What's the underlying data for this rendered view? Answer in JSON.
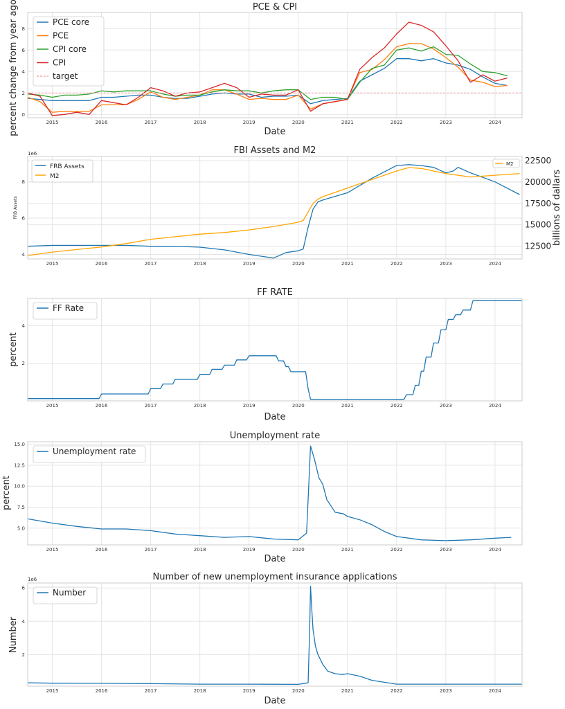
{
  "colors": {
    "blue": "#1f77b4",
    "orange": "#ff7f0e",
    "green": "#2ca02c",
    "red": "#d62728",
    "target": "#f4a6a6",
    "m2": "#ffa500",
    "grid": "#e5e5e5",
    "frame": "#cccccc"
  },
  "chart_data": [
    {
      "type": "line",
      "title": "PCE & CPI",
      "xlabel": "Date",
      "ylabel": "percent change from year ago",
      "xlim": [
        2014.5,
        2024.55
      ],
      "ylim": [
        -0.3,
        9.5
      ],
      "xticks": [
        "2015",
        "2016",
        "2017",
        "2018",
        "2019",
        "2020",
        "2021",
        "2022",
        "2023",
        "2024"
      ],
      "yticks": [
        "0",
        "2",
        "4",
        "6",
        "8"
      ],
      "legend": "upper left",
      "grid": true,
      "series": [
        {
          "name": "PCE core",
          "color": "blue",
          "x": [
            2014.5,
            2014.75,
            2015.0,
            2015.25,
            2015.5,
            2015.75,
            2016.0,
            2016.25,
            2016.5,
            2016.75,
            2017.0,
            2017.25,
            2017.5,
            2017.75,
            2018.0,
            2018.25,
            2018.5,
            2018.75,
            2019.0,
            2019.25,
            2019.5,
            2019.75,
            2020.0,
            2020.25,
            2020.5,
            2020.75,
            2021.0,
            2021.25,
            2021.5,
            2021.75,
            2022.0,
            2022.25,
            2022.5,
            2022.75,
            2023.0,
            2023.25,
            2023.5,
            2023.75,
            2024.0,
            2024.25
          ],
          "y": [
            1.5,
            1.4,
            1.3,
            1.3,
            1.3,
            1.3,
            1.6,
            1.6,
            1.7,
            1.8,
            1.8,
            1.6,
            1.5,
            1.5,
            1.7,
            1.9,
            2.0,
            1.9,
            1.9,
            1.6,
            1.7,
            1.7,
            1.8,
            1.0,
            1.3,
            1.4,
            1.5,
            3.1,
            3.7,
            4.3,
            5.2,
            5.2,
            5.0,
            5.2,
            4.8,
            4.6,
            4.2,
            3.5,
            2.9,
            2.7
          ]
        },
        {
          "name": "PCE",
          "color": "orange",
          "x": [
            2014.5,
            2014.75,
            2015.0,
            2015.25,
            2015.5,
            2015.75,
            2016.0,
            2016.25,
            2016.5,
            2016.75,
            2017.0,
            2017.25,
            2017.5,
            2017.75,
            2018.0,
            2018.25,
            2018.5,
            2018.75,
            2019.0,
            2019.25,
            2019.5,
            2019.75,
            2020.0,
            2020.25,
            2020.5,
            2020.75,
            2021.0,
            2021.25,
            2021.5,
            2021.75,
            2022.0,
            2022.25,
            2022.5,
            2022.75,
            2023.0,
            2023.25,
            2023.5,
            2023.75,
            2024.0,
            2024.25
          ],
          "y": [
            1.6,
            1.2,
            0.2,
            0.3,
            0.3,
            0.3,
            0.9,
            0.9,
            0.9,
            1.4,
            2.1,
            1.6,
            1.4,
            1.6,
            1.8,
            2.3,
            2.3,
            1.9,
            1.4,
            1.5,
            1.4,
            1.4,
            1.8,
            0.5,
            1.0,
            1.2,
            1.4,
            3.9,
            4.2,
            5.1,
            6.3,
            6.6,
            6.6,
            6.1,
            5.3,
            4.4,
            3.2,
            3.0,
            2.6,
            2.7
          ]
        },
        {
          "name": "CPI core",
          "color": "green",
          "x": [
            2014.5,
            2014.75,
            2015.0,
            2015.25,
            2015.5,
            2015.75,
            2016.0,
            2016.25,
            2016.5,
            2016.75,
            2017.0,
            2017.25,
            2017.5,
            2017.75,
            2018.0,
            2018.25,
            2018.5,
            2018.75,
            2019.0,
            2019.25,
            2019.5,
            2019.75,
            2020.0,
            2020.25,
            2020.5,
            2020.75,
            2021.0,
            2021.25,
            2021.5,
            2021.75,
            2022.0,
            2022.25,
            2022.5,
            2022.75,
            2023.0,
            2023.25,
            2023.5,
            2023.75,
            2024.0,
            2024.25
          ],
          "y": [
            1.9,
            1.8,
            1.6,
            1.8,
            1.8,
            1.9,
            2.2,
            2.1,
            2.2,
            2.2,
            2.2,
            1.9,
            1.7,
            1.8,
            1.8,
            2.1,
            2.3,
            2.2,
            2.2,
            2.0,
            2.2,
            2.3,
            2.3,
            1.4,
            1.6,
            1.6,
            1.4,
            3.0,
            4.3,
            4.6,
            6.0,
            6.2,
            5.9,
            6.3,
            5.6,
            5.5,
            4.7,
            4.0,
            3.9,
            3.6
          ]
        },
        {
          "name": "CPI",
          "color": "red",
          "x": [
            2014.5,
            2014.75,
            2015.0,
            2015.25,
            2015.5,
            2015.75,
            2016.0,
            2016.25,
            2016.5,
            2016.75,
            2017.0,
            2017.25,
            2017.5,
            2017.75,
            2018.0,
            2018.25,
            2018.5,
            2018.75,
            2019.0,
            2019.25,
            2019.5,
            2019.75,
            2020.0,
            2020.25,
            2020.5,
            2020.75,
            2021.0,
            2021.25,
            2021.5,
            2021.75,
            2022.0,
            2022.25,
            2022.5,
            2022.75,
            2023.0,
            2023.25,
            2023.5,
            2023.75,
            2024.0,
            2024.25
          ],
          "y": [
            2.0,
            1.7,
            -0.1,
            0.0,
            0.2,
            0.0,
            1.3,
            1.1,
            0.9,
            1.6,
            2.5,
            2.2,
            1.7,
            2.0,
            2.1,
            2.5,
            2.9,
            2.5,
            1.6,
            1.9,
            1.8,
            1.8,
            2.3,
            0.3,
            1.0,
            1.2,
            1.4,
            4.2,
            5.3,
            6.2,
            7.5,
            8.6,
            8.3,
            7.7,
            6.4,
            5.0,
            3.0,
            3.7,
            3.1,
            3.4
          ]
        },
        {
          "name": "target",
          "color": "target",
          "dashed": true,
          "x": [
            2014.5,
            2024.55
          ],
          "y": [
            2,
            2
          ]
        }
      ]
    },
    {
      "type": "line",
      "title": "FBI Assets and M2",
      "xlabel": "",
      "ylabel": "FRB Assets",
      "ylabel_right": "billions of dallars",
      "multiplier": "1e6",
      "xlim": [
        2014.5,
        2024.55
      ],
      "ylim": [
        3.75,
        9.4
      ],
      "ylim_right": [
        11000,
        23000
      ],
      "xticks": [
        "2015",
        "2016",
        "2017",
        "2018",
        "2019",
        "2020",
        "2021",
        "2022",
        "2023",
        "2024"
      ],
      "yticks": [
        "4",
        "6",
        "8"
      ],
      "yticks_right": [
        "12500",
        "15000",
        "17500",
        "20000",
        "22500"
      ],
      "legend": "upper left",
      "legend_right": "upper right",
      "grid": true,
      "series": [
        {
          "name": "FRB Assets",
          "axis": "left",
          "color": "blue",
          "x": [
            2014.5,
            2015.0,
            2015.5,
            2016.0,
            2016.5,
            2017.0,
            2017.5,
            2018.0,
            2018.5,
            2019.0,
            2019.5,
            2019.75,
            2020.0,
            2020.1,
            2020.2,
            2020.3,
            2020.4,
            2020.5,
            2021.0,
            2021.5,
            2022.0,
            2022.25,
            2022.5,
            2022.75,
            2023.0,
            2023.15,
            2023.25,
            2023.5,
            2024.0,
            2024.5
          ],
          "y": [
            4.45,
            4.5,
            4.5,
            4.5,
            4.5,
            4.45,
            4.45,
            4.4,
            4.25,
            4.0,
            3.8,
            4.1,
            4.2,
            4.3,
            5.5,
            6.5,
            6.9,
            7.0,
            7.4,
            8.2,
            8.9,
            8.95,
            8.9,
            8.8,
            8.5,
            8.6,
            8.8,
            8.5,
            8.0,
            7.3
          ]
        },
        {
          "name": "M2",
          "axis": "right",
          "color": "m2",
          "x": [
            2014.5,
            2015.0,
            2015.5,
            2016.0,
            2016.5,
            2017.0,
            2017.5,
            2018.0,
            2018.5,
            2019.0,
            2019.5,
            2020.0,
            2020.1,
            2020.2,
            2020.3,
            2020.4,
            2020.5,
            2021.0,
            2021.5,
            2022.0,
            2022.25,
            2022.5,
            2023.0,
            2023.5,
            2024.0,
            2024.5
          ],
          "y": [
            11400,
            11800,
            12100,
            12400,
            12800,
            13300,
            13600,
            13900,
            14100,
            14400,
            14800,
            15300,
            15500,
            16500,
            17500,
            18000,
            18300,
            19300,
            20300,
            21300,
            21700,
            21600,
            21000,
            20600,
            20800,
            21000
          ]
        }
      ]
    },
    {
      "type": "line",
      "title": "FF RATE",
      "xlabel": "Date",
      "ylabel": "percent",
      "xlim": [
        2014.5,
        2024.55
      ],
      "ylim": [
        0,
        5.45
      ],
      "xticks": [
        "2015",
        "2016",
        "2017",
        "2018",
        "2019",
        "2020",
        "2021",
        "2022",
        "2023",
        "2024"
      ],
      "yticks": [
        "2",
        "4"
      ],
      "legend": "upper left",
      "grid": true,
      "series": [
        {
          "name": "FF Rate",
          "color": "blue",
          "x": [
            2014.5,
            2015.95,
            2016.0,
            2016.95,
            2017.0,
            2017.2,
            2017.25,
            2017.45,
            2017.5,
            2017.95,
            2018.0,
            2018.2,
            2018.25,
            2018.45,
            2018.5,
            2018.7,
            2018.75,
            2018.95,
            2019.0,
            2019.55,
            2019.6,
            2019.7,
            2019.75,
            2019.8,
            2019.85,
            2020.15,
            2020.2,
            2020.25,
            2022.15,
            2022.2,
            2022.33,
            2022.38,
            2022.45,
            2022.5,
            2022.55,
            2022.6,
            2022.7,
            2022.75,
            2022.85,
            2022.9,
            2023.0,
            2023.05,
            2023.15,
            2023.2,
            2023.3,
            2023.35,
            2023.5,
            2023.55,
            2024.55
          ],
          "y": [
            0.12,
            0.12,
            0.37,
            0.37,
            0.65,
            0.65,
            0.9,
            0.9,
            1.15,
            1.15,
            1.41,
            1.41,
            1.68,
            1.68,
            1.9,
            1.9,
            2.18,
            2.18,
            2.4,
            2.4,
            2.13,
            2.13,
            1.83,
            1.83,
            1.55,
            1.55,
            0.65,
            0.08,
            0.08,
            0.33,
            0.33,
            0.83,
            0.83,
            1.58,
            1.58,
            2.33,
            2.33,
            3.08,
            3.08,
            3.78,
            3.78,
            4.33,
            4.33,
            4.58,
            4.58,
            4.83,
            4.83,
            5.33,
            5.33
          ]
        }
      ]
    },
    {
      "type": "line",
      "title": "Unemployment rate",
      "xlabel": "Date",
      "ylabel": "percent",
      "xlim": [
        2014.5,
        2024.55
      ],
      "ylim": [
        3.0,
        15.3
      ],
      "xticks": [
        "2015",
        "2016",
        "2017",
        "2018",
        "2019",
        "2020",
        "2021",
        "2022",
        "2023",
        "2024"
      ],
      "yticks": [
        "5.0",
        "7.5",
        "10.0",
        "12.5",
        "15.0"
      ],
      "legend": "upper left",
      "grid": true,
      "series": [
        {
          "name": "Unemployment rate",
          "color": "blue",
          "x": [
            2014.5,
            2015.0,
            2015.5,
            2016.0,
            2016.5,
            2017.0,
            2017.5,
            2018.0,
            2018.5,
            2019.0,
            2019.5,
            2020.0,
            2020.17,
            2020.25,
            2020.33,
            2020.42,
            2020.5,
            2020.58,
            2020.75,
            2020.92,
            2021.0,
            2021.25,
            2021.5,
            2021.75,
            2022.0,
            2022.5,
            2023.0,
            2023.5,
            2024.0,
            2024.33
          ],
          "y": [
            6.1,
            5.6,
            5.2,
            4.9,
            4.9,
            4.7,
            4.3,
            4.1,
            3.9,
            4.0,
            3.7,
            3.6,
            4.4,
            14.8,
            13.2,
            11.0,
            10.2,
            8.4,
            6.9,
            6.7,
            6.4,
            6.0,
            5.4,
            4.6,
            4.0,
            3.6,
            3.5,
            3.6,
            3.8,
            3.9
          ]
        }
      ]
    },
    {
      "type": "line",
      "title": "Number of new unemployment insurance applications",
      "xlabel": "Date",
      "ylabel": "Number",
      "multiplier": "1e6",
      "xlim": [
        2014.5,
        2024.55
      ],
      "ylim": [
        0.1,
        6.3
      ],
      "xticks": [
        "2015",
        "2016",
        "2017",
        "2018",
        "2019",
        "2020",
        "2021",
        "2022",
        "2023",
        "2024"
      ],
      "yticks": [
        "2",
        "4",
        "6"
      ],
      "legend": "upper left",
      "grid": true,
      "series": [
        {
          "name": "Number",
          "color": "blue",
          "x": [
            2014.5,
            2015.0,
            2016.0,
            2017.0,
            2018.0,
            2019.0,
            2020.0,
            2020.2,
            2020.23,
            2020.25,
            2020.28,
            2020.3,
            2020.35,
            2020.4,
            2020.5,
            2020.6,
            2020.75,
            2020.9,
            2021.0,
            2021.25,
            2021.5,
            2022.0,
            2023.0,
            2024.0,
            2024.55
          ],
          "y": [
            0.3,
            0.28,
            0.27,
            0.25,
            0.22,
            0.22,
            0.21,
            0.3,
            3.3,
            6.1,
            4.5,
            3.5,
            2.5,
            2.0,
            1.4,
            1.0,
            0.85,
            0.8,
            0.85,
            0.7,
            0.45,
            0.22,
            0.22,
            0.22,
            0.22
          ]
        }
      ]
    }
  ]
}
